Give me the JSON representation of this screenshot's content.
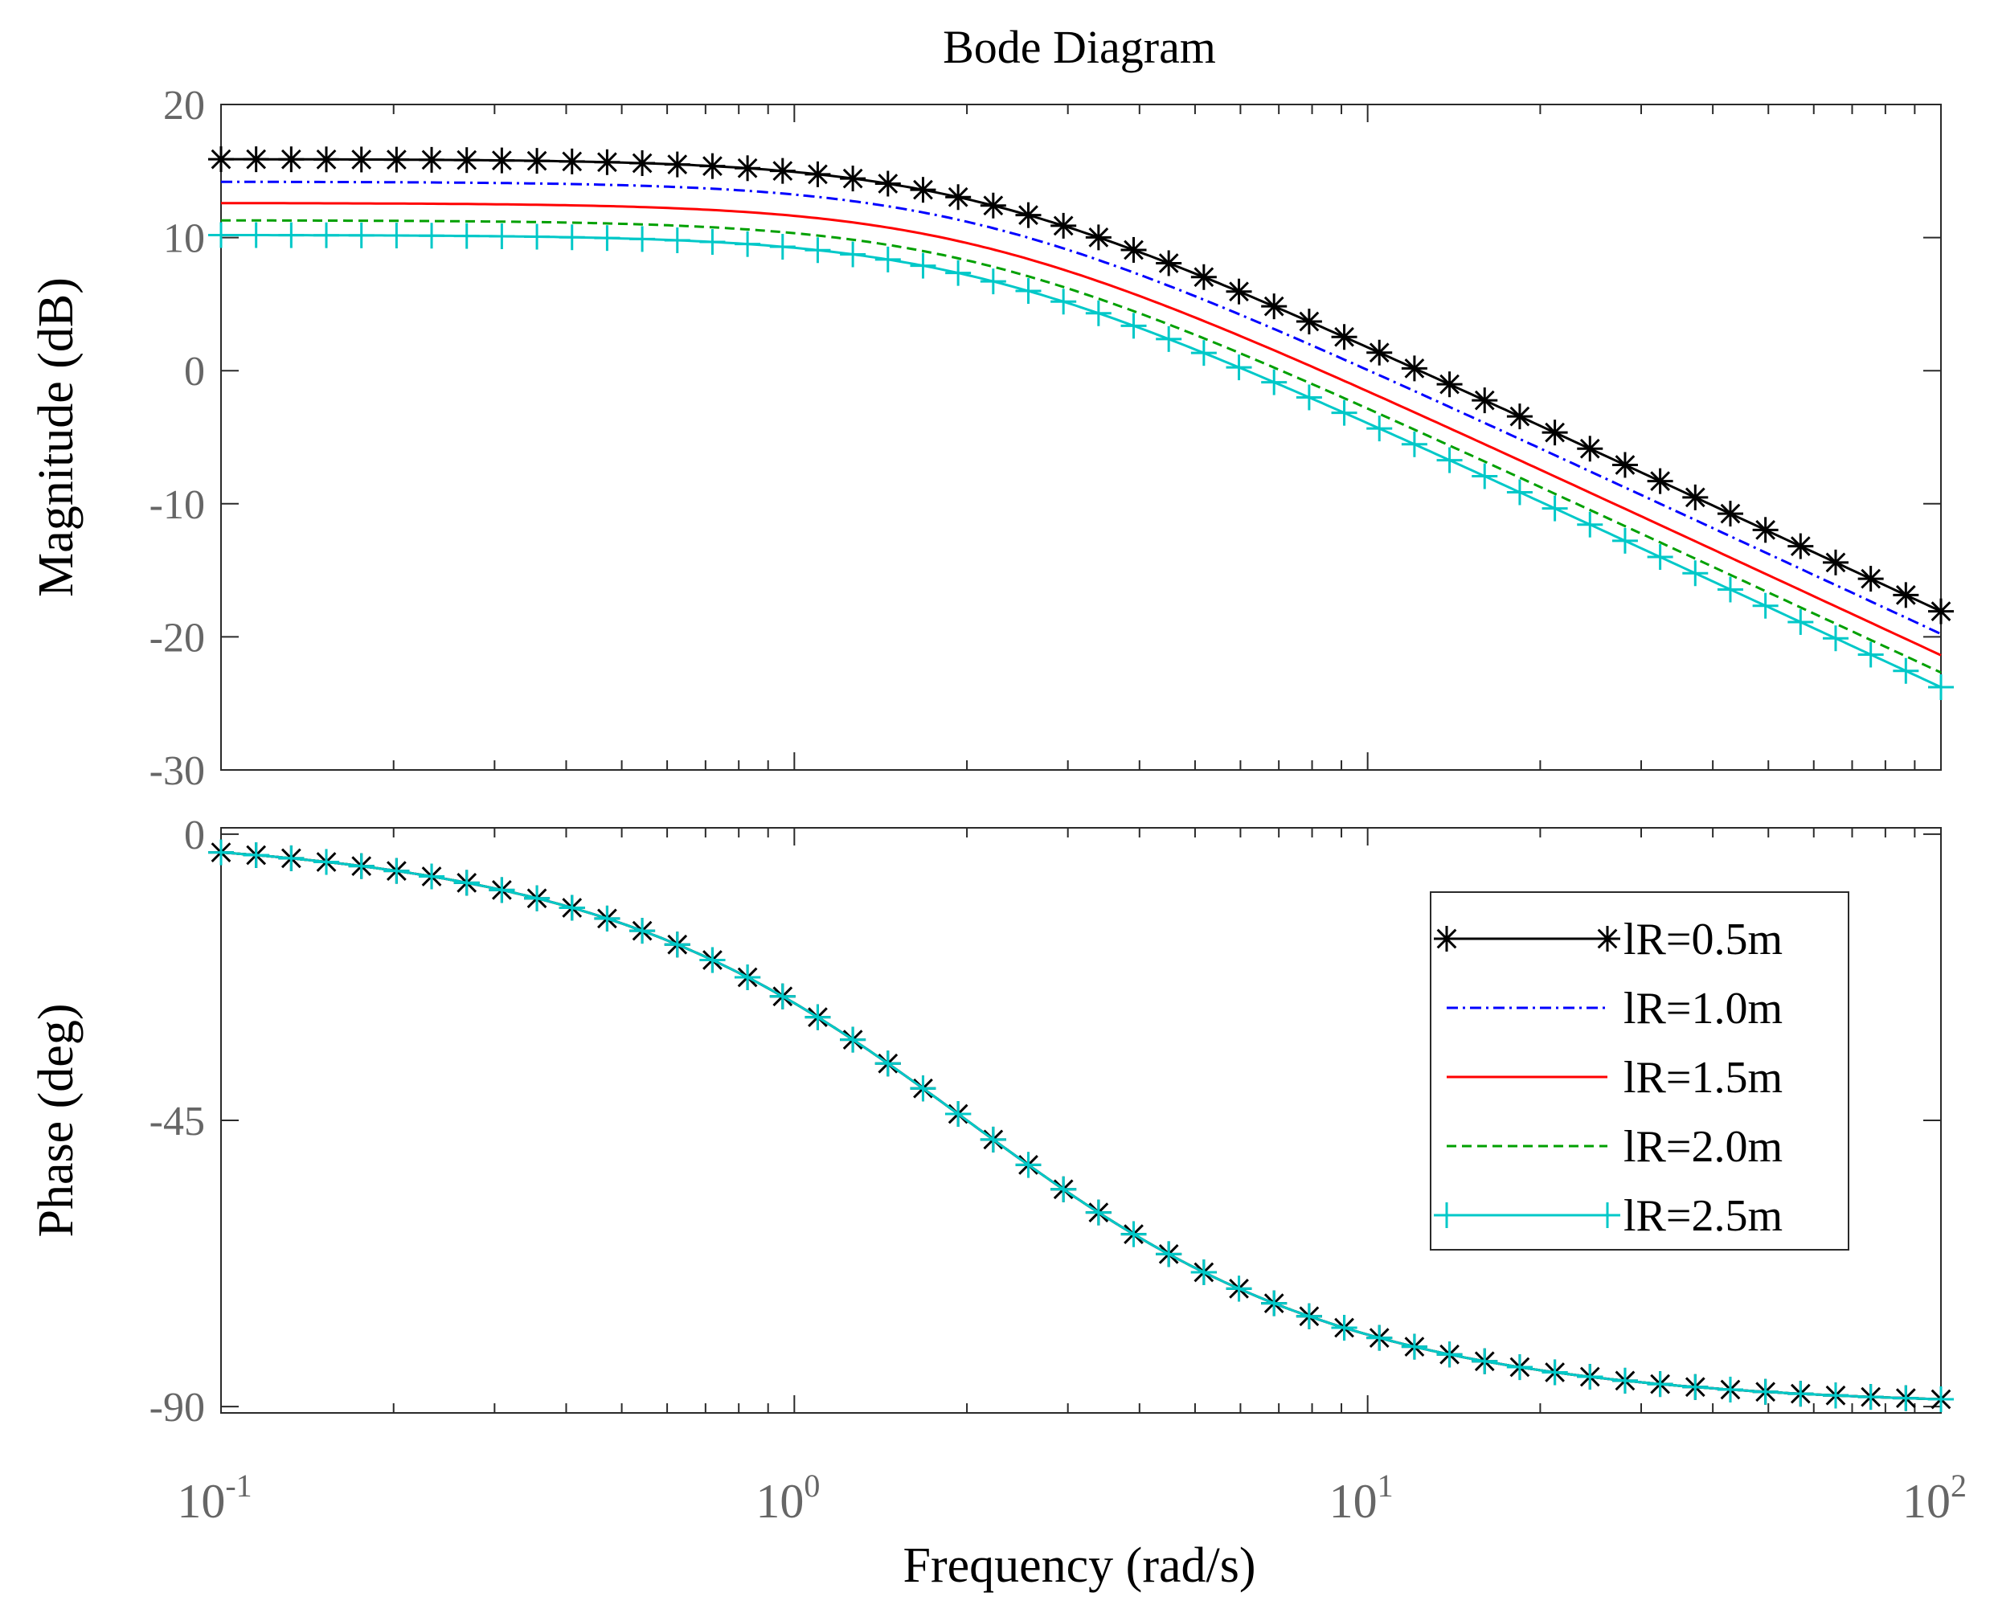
{
  "chart_data": {
    "type": "line",
    "title": "Bode Diagram",
    "xlabel": "Frequency  (rad/s)",
    "xscale": "log",
    "xlim": [
      0.1,
      100
    ],
    "x_ticks": [
      {
        "base": "10",
        "exp": "-1"
      },
      {
        "base": "10",
        "exp": "0"
      },
      {
        "base": "10",
        "exp": "1"
      },
      {
        "base": "10",
        "exp": "2"
      }
    ],
    "grid": false,
    "legend_position": "right-middle of phase panel",
    "panels": [
      {
        "name": "magnitude",
        "ylabel": "Magnitude (dB)",
        "ylim": [
          -30,
          20
        ],
        "y_ticks": [
          "20",
          "10",
          "0",
          "-10",
          "-20",
          "-30"
        ]
      },
      {
        "name": "phase",
        "ylabel": "Phase (deg)",
        "ylim": [
          -91,
          1
        ],
        "y_ticks": [
          "0",
          "-45",
          "-90"
        ]
      }
    ],
    "series": [
      {
        "name": "lR=0.5m",
        "color": "#000000",
        "style": "solid",
        "marker": "asterisk",
        "dc_gain_db": 15.9,
        "corner_freq": 2.0
      },
      {
        "name": "lR=1.0m",
        "color": "#0000ff",
        "style": "dashdot",
        "marker": "none",
        "dc_gain_db": 14.2,
        "corner_freq": 2.0
      },
      {
        "name": "lR=1.5m",
        "color": "#ff0000",
        "style": "solid",
        "marker": "none",
        "dc_gain_db": 12.6,
        "corner_freq": 2.0
      },
      {
        "name": "lR=2.0m",
        "color": "#00a000",
        "style": "dashed",
        "marker": "none",
        "dc_gain_db": 11.3,
        "corner_freq": 2.0
      },
      {
        "name": "lR=2.5m",
        "color": "#00c8c8",
        "style": "solid",
        "marker": "plus",
        "dc_gain_db": 10.2,
        "corner_freq": 2.0
      }
    ]
  }
}
